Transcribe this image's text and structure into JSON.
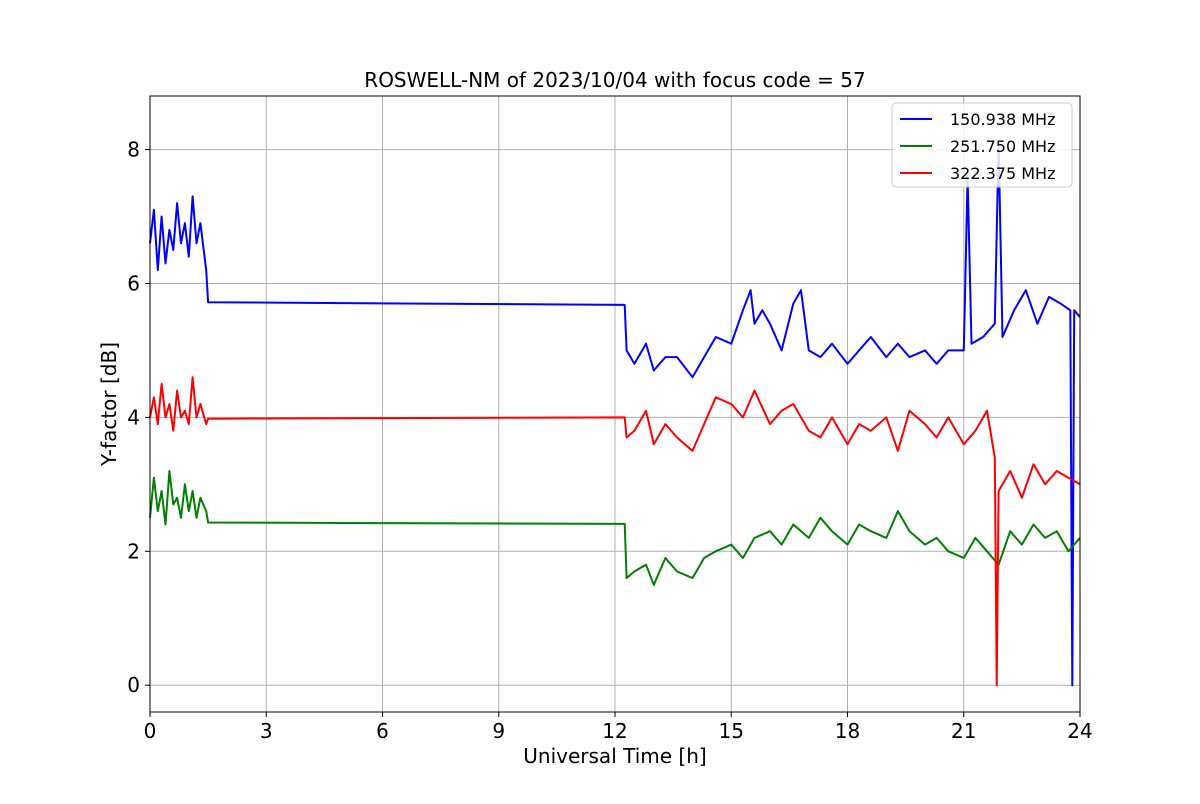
{
  "chart_data": {
    "type": "line",
    "title": "ROSWELL-NM of 2023/10/04 with focus code = 57",
    "xlabel": "Universal Time [h]",
    "ylabel": "Y-factor [dB]",
    "xlim": [
      0,
      24
    ],
    "ylim": [
      -0.4,
      8.8
    ],
    "xticks": [
      0,
      3,
      6,
      9,
      12,
      15,
      18,
      21,
      24
    ],
    "yticks": [
      0,
      2,
      4,
      6,
      8
    ],
    "grid": true,
    "legend_position": "top-right",
    "series": [
      {
        "name": "150.938 MHz",
        "color": "#0000ff",
        "x": [
          0,
          0.1,
          0.2,
          0.3,
          0.4,
          0.5,
          0.6,
          0.7,
          0.8,
          0.9,
          1.0,
          1.1,
          1.2,
          1.3,
          1.45,
          1.5,
          12.25,
          12.3,
          12.5,
          12.8,
          13.0,
          13.3,
          13.6,
          14.0,
          14.3,
          14.6,
          15.0,
          15.3,
          15.5,
          15.6,
          15.8,
          16.0,
          16.3,
          16.6,
          16.8,
          17.0,
          17.3,
          17.6,
          18.0,
          18.3,
          18.6,
          19.0,
          19.3,
          19.6,
          20.0,
          20.3,
          20.6,
          21.0,
          21.1,
          21.2,
          21.5,
          21.8,
          21.9,
          22.0,
          22.3,
          22.6,
          22.9,
          23.2,
          23.5,
          23.75,
          23.8,
          23.85,
          24.0
        ],
        "y": [
          6.6,
          7.1,
          6.2,
          7.0,
          6.3,
          6.8,
          6.5,
          7.2,
          6.6,
          6.9,
          6.4,
          7.3,
          6.6,
          6.9,
          6.2,
          5.72,
          5.68,
          5.0,
          4.8,
          5.1,
          4.7,
          4.9,
          4.9,
          4.6,
          4.9,
          5.2,
          5.1,
          5.6,
          5.9,
          5.4,
          5.6,
          5.4,
          5.0,
          5.7,
          5.9,
          5.0,
          4.9,
          5.1,
          4.8,
          5.0,
          5.2,
          4.9,
          5.1,
          4.9,
          5.0,
          4.8,
          5.0,
          5.0,
          7.6,
          5.1,
          5.2,
          5.4,
          8.1,
          5.2,
          5.6,
          5.9,
          5.4,
          5.8,
          5.7,
          5.6,
          0.0,
          5.6,
          5.5
        ]
      },
      {
        "name": "251.750 MHz",
        "color": "#008000",
        "x": [
          0,
          0.1,
          0.2,
          0.3,
          0.4,
          0.5,
          0.6,
          0.7,
          0.8,
          0.9,
          1.0,
          1.1,
          1.2,
          1.3,
          1.45,
          1.5,
          12.25,
          12.3,
          12.5,
          12.8,
          13.0,
          13.3,
          13.6,
          14.0,
          14.3,
          14.6,
          15.0,
          15.3,
          15.6,
          16.0,
          16.3,
          16.6,
          17.0,
          17.3,
          17.6,
          18.0,
          18.3,
          18.6,
          19.0,
          19.3,
          19.6,
          20.0,
          20.3,
          20.6,
          21.0,
          21.3,
          21.6,
          21.9,
          22.2,
          22.5,
          22.8,
          23.1,
          23.4,
          23.7,
          24.0
        ],
        "y": [
          2.5,
          3.1,
          2.6,
          2.9,
          2.4,
          3.2,
          2.7,
          2.8,
          2.5,
          3.0,
          2.6,
          2.9,
          2.5,
          2.8,
          2.6,
          2.43,
          2.41,
          1.6,
          1.7,
          1.8,
          1.5,
          1.9,
          1.7,
          1.6,
          1.9,
          2.0,
          2.1,
          1.9,
          2.2,
          2.3,
          2.1,
          2.4,
          2.2,
          2.5,
          2.3,
          2.1,
          2.4,
          2.3,
          2.2,
          2.6,
          2.3,
          2.1,
          2.2,
          2.0,
          1.9,
          2.2,
          2.0,
          1.8,
          2.3,
          2.1,
          2.4,
          2.2,
          2.3,
          2.0,
          2.2
        ]
      },
      {
        "name": "322.375 MHz",
        "color": "#ff0000",
        "x": [
          0,
          0.1,
          0.2,
          0.3,
          0.4,
          0.5,
          0.6,
          0.7,
          0.8,
          0.9,
          1.0,
          1.1,
          1.2,
          1.3,
          1.45,
          1.5,
          12.25,
          12.3,
          12.5,
          12.8,
          13.0,
          13.3,
          13.6,
          14.0,
          14.3,
          14.6,
          15.0,
          15.3,
          15.6,
          16.0,
          16.3,
          16.6,
          17.0,
          17.3,
          17.6,
          18.0,
          18.3,
          18.6,
          19.0,
          19.3,
          19.6,
          20.0,
          20.3,
          20.6,
          21.0,
          21.3,
          21.6,
          21.8,
          21.85,
          21.9,
          22.2,
          22.5,
          22.8,
          23.1,
          23.4,
          23.7,
          24.0
        ],
        "y": [
          4.0,
          4.3,
          3.9,
          4.5,
          4.0,
          4.2,
          3.8,
          4.4,
          4.0,
          4.1,
          3.9,
          4.6,
          4.0,
          4.2,
          3.9,
          3.98,
          4.0,
          3.7,
          3.8,
          4.1,
          3.6,
          3.9,
          3.7,
          3.5,
          3.9,
          4.3,
          4.2,
          4.0,
          4.4,
          3.9,
          4.1,
          4.2,
          3.8,
          3.7,
          4.0,
          3.6,
          3.9,
          3.8,
          4.0,
          3.5,
          4.1,
          3.9,
          3.7,
          4.0,
          3.6,
          3.8,
          4.1,
          3.4,
          0.0,
          2.9,
          3.2,
          2.8,
          3.3,
          3.0,
          3.2,
          3.1,
          3.0
        ]
      }
    ]
  }
}
